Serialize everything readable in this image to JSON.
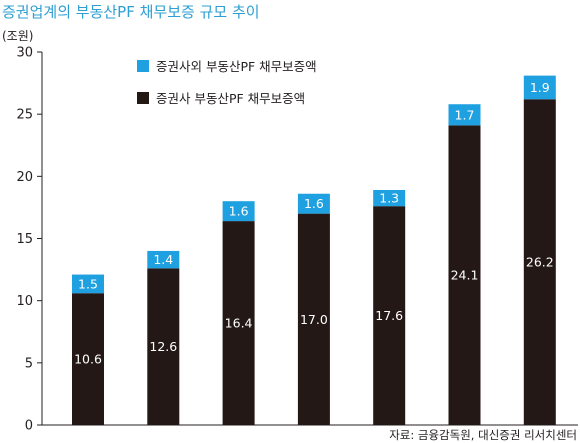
{
  "chart_data": {
    "type": "bar",
    "stacked": true,
    "title": "증권업계의 부동산PF 채무보증 규모 추이",
    "unit_label": "(조원)",
    "source": "자료: 금융감독원, 대신증권 리서치센터",
    "ylim": [
      0,
      30
    ],
    "yticks": [
      0,
      5,
      10,
      15,
      20,
      25,
      30
    ],
    "categories": [
      "",
      "",
      "",
      "",
      "",
      "",
      ""
    ],
    "series": [
      {
        "name": "증권사 부동산PF 채무보증액",
        "color": "#231815",
        "values": [
          10.6,
          12.6,
          16.4,
          17.0,
          17.6,
          24.1,
          26.2
        ],
        "labels": [
          "10.6",
          "12.6",
          "16.4",
          "17.0",
          "17.6",
          "24.1",
          "26.2"
        ]
      },
      {
        "name": "증권사외 부동산PF 채무보증액",
        "color": "#1fa0e0",
        "values": [
          1.5,
          1.4,
          1.6,
          1.6,
          1.3,
          1.7,
          1.9
        ],
        "labels": [
          "1.5",
          "1.4",
          "1.6",
          "1.6",
          "1.3",
          "1.7",
          "1.9"
        ]
      }
    ],
    "legend_order": [
      1,
      0
    ],
    "legend_position": "top-left",
    "grid": false
  }
}
